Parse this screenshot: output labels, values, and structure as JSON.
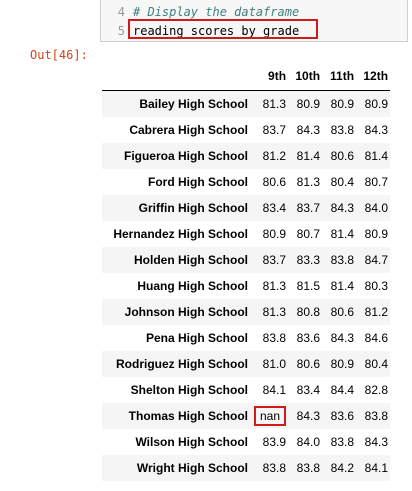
{
  "code": {
    "lines": [
      {
        "number": "4",
        "text": "# Display the dataframe"
      },
      {
        "number": "5",
        "text": "reading_scores_by_grade"
      }
    ]
  },
  "output_prompt": "Out[46]:",
  "table": {
    "columns": [
      "9th",
      "10th",
      "11th",
      "12th"
    ],
    "rows": [
      {
        "school": "Bailey High School",
        "values": [
          "81.3",
          "80.9",
          "80.9",
          "80.9"
        ]
      },
      {
        "school": "Cabrera High School",
        "values": [
          "83.7",
          "84.3",
          "83.8",
          "84.3"
        ]
      },
      {
        "school": "Figueroa High School",
        "values": [
          "81.2",
          "81.4",
          "80.6",
          "81.4"
        ]
      },
      {
        "school": "Ford High School",
        "values": [
          "80.6",
          "81.3",
          "80.4",
          "80.7"
        ]
      },
      {
        "school": "Griffin High School",
        "values": [
          "83.4",
          "83.7",
          "84.3",
          "84.0"
        ]
      },
      {
        "school": "Hernandez High School",
        "values": [
          "80.9",
          "80.7",
          "81.4",
          "80.9"
        ]
      },
      {
        "school": "Holden High School",
        "values": [
          "83.7",
          "83.3",
          "83.8",
          "84.7"
        ]
      },
      {
        "school": "Huang High School",
        "values": [
          "81.3",
          "81.5",
          "81.4",
          "80.3"
        ]
      },
      {
        "school": "Johnson High School",
        "values": [
          "81.3",
          "80.8",
          "80.6",
          "81.2"
        ]
      },
      {
        "school": "Pena High School",
        "values": [
          "83.8",
          "83.6",
          "84.3",
          "84.6"
        ]
      },
      {
        "school": "Rodriguez High School",
        "values": [
          "81.0",
          "80.6",
          "80.9",
          "80.4"
        ]
      },
      {
        "school": "Shelton High School",
        "values": [
          "84.1",
          "83.4",
          "84.4",
          "82.8"
        ]
      },
      {
        "school": "Thomas High School",
        "values": [
          "nan",
          "84.3",
          "83.6",
          "83.8"
        ]
      },
      {
        "school": "Wilson High School",
        "values": [
          "83.9",
          "84.0",
          "83.8",
          "84.3"
        ]
      },
      {
        "school": "Wright High School",
        "values": [
          "83.8",
          "83.8",
          "84.2",
          "84.1"
        ]
      }
    ]
  },
  "colors": {
    "highlight_border": "#d11b1b",
    "prompt_out": "#d84315",
    "comment": "#408080"
  }
}
